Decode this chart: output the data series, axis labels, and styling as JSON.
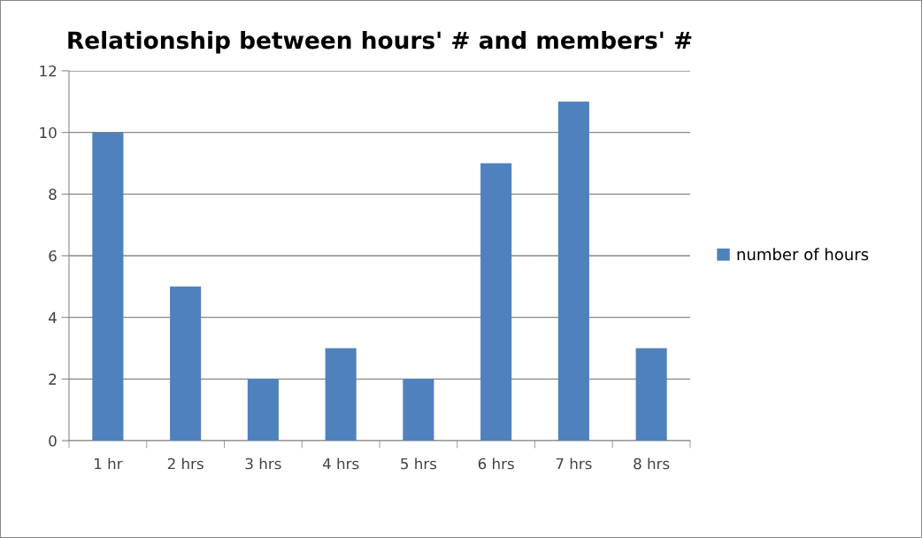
{
  "chart_data": {
    "type": "bar",
    "title": "Relationship between hours' # and members' #",
    "categories": [
      "1 hr",
      "2 hrs",
      "3 hrs",
      "4 hrs",
      "5 hrs",
      "6 hrs",
      "7 hrs",
      "8 hrs"
    ],
    "series": [
      {
        "name": "number of hours",
        "color": "#4f81bd",
        "values": [
          10,
          5,
          2,
          3,
          2,
          9,
          11,
          3
        ]
      }
    ],
    "ylim": [
      0,
      12
    ],
    "yticks": [
      0,
      2,
      4,
      6,
      8,
      10,
      12
    ],
    "grid": "y",
    "legend": "right"
  }
}
